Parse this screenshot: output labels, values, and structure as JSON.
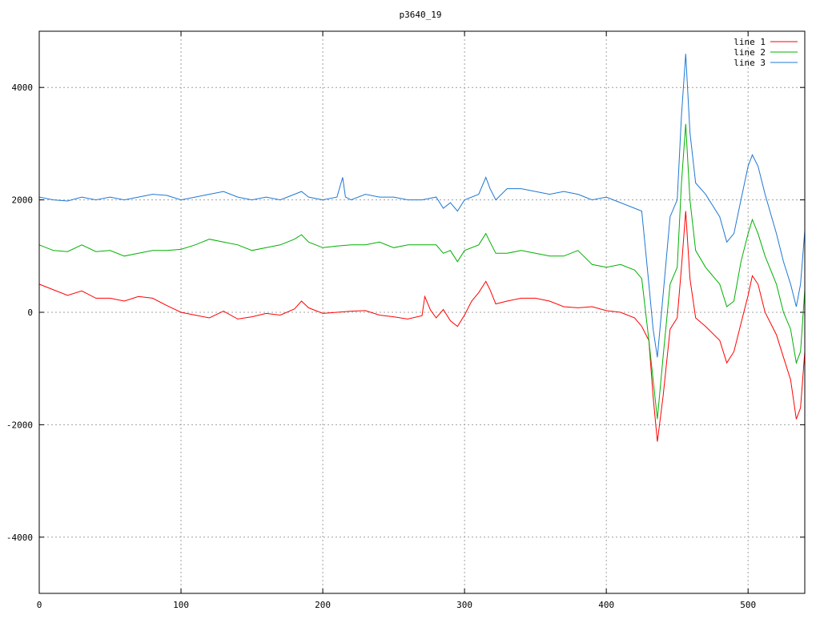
{
  "chart_data": {
    "type": "line",
    "title": "p3640_19",
    "xlabel": "",
    "ylabel": "",
    "xlim": [
      0,
      540
    ],
    "ylim": [
      -5000,
      5000
    ],
    "x_ticks": [
      0,
      100,
      200,
      300,
      400,
      500
    ],
    "y_ticks": [
      -4000,
      -2000,
      0,
      2000,
      4000
    ],
    "x_tick_labels": [
      "0",
      "100",
      "200",
      "300",
      "400",
      "500"
    ],
    "y_tick_labels": [
      "-4000",
      "-2000",
      "0",
      "2000",
      "4000"
    ],
    "grid": true,
    "legend_position": "top-right",
    "series": [
      {
        "name": "line 1",
        "color": "#ff0000",
        "points": [
          [
            0,
            500
          ],
          [
            10,
            400
          ],
          [
            20,
            300
          ],
          [
            30,
            380
          ],
          [
            40,
            250
          ],
          [
            50,
            250
          ],
          [
            60,
            200
          ],
          [
            70,
            280
          ],
          [
            80,
            250
          ],
          [
            90,
            120
          ],
          [
            100,
            0
          ],
          [
            110,
            -50
          ],
          [
            120,
            -100
          ],
          [
            130,
            20
          ],
          [
            140,
            -120
          ],
          [
            150,
            -80
          ],
          [
            160,
            -20
          ],
          [
            170,
            -50
          ],
          [
            180,
            60
          ],
          [
            185,
            200
          ],
          [
            190,
            80
          ],
          [
            200,
            -20
          ],
          [
            210,
            0
          ],
          [
            220,
            20
          ],
          [
            230,
            30
          ],
          [
            240,
            -50
          ],
          [
            250,
            -80
          ],
          [
            260,
            -120
          ],
          [
            270,
            -60
          ],
          [
            272,
            280
          ],
          [
            276,
            40
          ],
          [
            280,
            -100
          ],
          [
            285,
            50
          ],
          [
            290,
            -150
          ],
          [
            295,
            -250
          ],
          [
            300,
            -50
          ],
          [
            305,
            200
          ],
          [
            310,
            350
          ],
          [
            315,
            550
          ],
          [
            318,
            400
          ],
          [
            322,
            150
          ],
          [
            330,
            200
          ],
          [
            340,
            250
          ],
          [
            350,
            250
          ],
          [
            360,
            200
          ],
          [
            370,
            100
          ],
          [
            380,
            80
          ],
          [
            390,
            100
          ],
          [
            400,
            30
          ],
          [
            410,
            0
          ],
          [
            420,
            -100
          ],
          [
            425,
            -250
          ],
          [
            430,
            -500
          ],
          [
            433,
            -1500
          ],
          [
            436,
            -2300
          ],
          [
            440,
            -1500
          ],
          [
            445,
            -300
          ],
          [
            450,
            -100
          ],
          [
            453,
            800
          ],
          [
            456,
            1800
          ],
          [
            459,
            600
          ],
          [
            463,
            -100
          ],
          [
            470,
            -250
          ],
          [
            480,
            -500
          ],
          [
            485,
            -900
          ],
          [
            490,
            -700
          ],
          [
            495,
            -200
          ],
          [
            500,
            300
          ],
          [
            503,
            650
          ],
          [
            507,
            500
          ],
          [
            512,
            0
          ],
          [
            520,
            -400
          ],
          [
            525,
            -800
          ],
          [
            530,
            -1200
          ],
          [
            534,
            -1900
          ],
          [
            537,
            -1700
          ],
          [
            540,
            -700
          ]
        ]
      },
      {
        "name": "line 2",
        "color": "#00b000",
        "points": [
          [
            0,
            1200
          ],
          [
            10,
            1100
          ],
          [
            20,
            1080
          ],
          [
            30,
            1200
          ],
          [
            40,
            1080
          ],
          [
            50,
            1100
          ],
          [
            60,
            1000
          ],
          [
            70,
            1050
          ],
          [
            80,
            1100
          ],
          [
            90,
            1100
          ],
          [
            100,
            1120
          ],
          [
            110,
            1200
          ],
          [
            120,
            1300
          ],
          [
            130,
            1250
          ],
          [
            140,
            1200
          ],
          [
            150,
            1100
          ],
          [
            160,
            1150
          ],
          [
            170,
            1200
          ],
          [
            180,
            1300
          ],
          [
            185,
            1380
          ],
          [
            190,
            1250
          ],
          [
            200,
            1150
          ],
          [
            210,
            1180
          ],
          [
            220,
            1200
          ],
          [
            230,
            1200
          ],
          [
            240,
            1250
          ],
          [
            250,
            1150
          ],
          [
            260,
            1200
          ],
          [
            270,
            1200
          ],
          [
            280,
            1200
          ],
          [
            285,
            1050
          ],
          [
            290,
            1100
          ],
          [
            295,
            900
          ],
          [
            300,
            1100
          ],
          [
            310,
            1200
          ],
          [
            315,
            1400
          ],
          [
            318,
            1250
          ],
          [
            322,
            1050
          ],
          [
            330,
            1050
          ],
          [
            340,
            1100
          ],
          [
            350,
            1050
          ],
          [
            360,
            1000
          ],
          [
            370,
            1000
          ],
          [
            380,
            1100
          ],
          [
            390,
            850
          ],
          [
            400,
            800
          ],
          [
            410,
            850
          ],
          [
            420,
            750
          ],
          [
            425,
            600
          ],
          [
            430,
            -500
          ],
          [
            433,
            -1200
          ],
          [
            436,
            -1900
          ],
          [
            440,
            -800
          ],
          [
            445,
            500
          ],
          [
            450,
            800
          ],
          [
            453,
            2300
          ],
          [
            456,
            3350
          ],
          [
            459,
            2000
          ],
          [
            463,
            1100
          ],
          [
            470,
            800
          ],
          [
            480,
            500
          ],
          [
            485,
            100
          ],
          [
            490,
            200
          ],
          [
            495,
            900
          ],
          [
            500,
            1400
          ],
          [
            503,
            1650
          ],
          [
            507,
            1400
          ],
          [
            512,
            1000
          ],
          [
            520,
            500
          ],
          [
            525,
            0
          ],
          [
            530,
            -300
          ],
          [
            534,
            -900
          ],
          [
            537,
            -700
          ],
          [
            540,
            400
          ]
        ]
      },
      {
        "name": "line 3",
        "color": "#1f77d4",
        "points": [
          [
            0,
            2050
          ],
          [
            10,
            2000
          ],
          [
            20,
            1980
          ],
          [
            30,
            2050
          ],
          [
            40,
            2000
          ],
          [
            50,
            2050
          ],
          [
            60,
            2000
          ],
          [
            70,
            2050
          ],
          [
            80,
            2100
          ],
          [
            90,
            2080
          ],
          [
            100,
            2000
          ],
          [
            110,
            2050
          ],
          [
            120,
            2100
          ],
          [
            130,
            2150
          ],
          [
            140,
            2050
          ],
          [
            150,
            2000
          ],
          [
            160,
            2050
          ],
          [
            170,
            2000
          ],
          [
            180,
            2100
          ],
          [
            185,
            2150
          ],
          [
            190,
            2050
          ],
          [
            200,
            2000
          ],
          [
            210,
            2050
          ],
          [
            214,
            2400
          ],
          [
            216,
            2050
          ],
          [
            220,
            2000
          ],
          [
            230,
            2100
          ],
          [
            240,
            2050
          ],
          [
            250,
            2050
          ],
          [
            260,
            2000
          ],
          [
            270,
            2000
          ],
          [
            280,
            2050
          ],
          [
            285,
            1850
          ],
          [
            290,
            1950
          ],
          [
            295,
            1800
          ],
          [
            300,
            2000
          ],
          [
            310,
            2100
          ],
          [
            315,
            2400
          ],
          [
            318,
            2200
          ],
          [
            322,
            2000
          ],
          [
            330,
            2200
          ],
          [
            340,
            2200
          ],
          [
            350,
            2150
          ],
          [
            360,
            2100
          ],
          [
            370,
            2150
          ],
          [
            380,
            2100
          ],
          [
            390,
            2000
          ],
          [
            400,
            2050
          ],
          [
            410,
            1950
          ],
          [
            420,
            1850
          ],
          [
            425,
            1800
          ],
          [
            430,
            500
          ],
          [
            433,
            -300
          ],
          [
            436,
            -800
          ],
          [
            440,
            300
          ],
          [
            445,
            1700
          ],
          [
            450,
            2000
          ],
          [
            453,
            3500
          ],
          [
            456,
            4600
          ],
          [
            459,
            3200
          ],
          [
            463,
            2300
          ],
          [
            470,
            2100
          ],
          [
            480,
            1700
          ],
          [
            485,
            1250
          ],
          [
            490,
            1400
          ],
          [
            495,
            2000
          ],
          [
            500,
            2600
          ],
          [
            503,
            2800
          ],
          [
            507,
            2600
          ],
          [
            512,
            2100
          ],
          [
            520,
            1400
          ],
          [
            525,
            900
          ],
          [
            530,
            500
          ],
          [
            534,
            100
          ],
          [
            537,
            500
          ],
          [
            540,
            1450
          ]
        ]
      }
    ]
  }
}
